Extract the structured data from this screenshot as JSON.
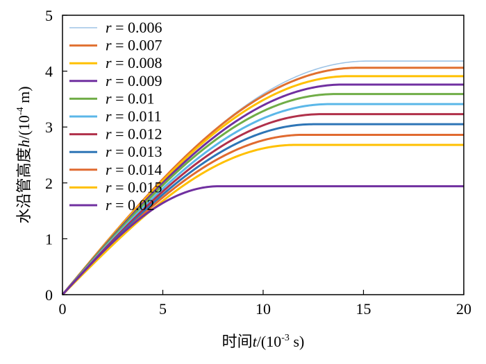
{
  "chart_data": {
    "type": "line",
    "title": "",
    "xlabel": {
      "prefix": "时间",
      "var": "t",
      "mid": "/(10",
      "exp": "-3",
      "suffix": " s)"
    },
    "ylabel": {
      "prefix": "水沿管高度",
      "var": "h",
      "mid": "/(10",
      "exp": "-4",
      "suffix": " m)"
    },
    "xlim": [
      0,
      20
    ],
    "ylim": [
      0,
      5
    ],
    "xticks": [
      "0",
      "5",
      "10",
      "15",
      "20"
    ],
    "yticks": [
      "0",
      "1",
      "2",
      "3",
      "4",
      "5"
    ],
    "grid": false,
    "legend_position": "top-left",
    "legend_var": "r",
    "series": [
      {
        "name": "= 0.006",
        "color": "#9dc3e6",
        "t_plateau": 15.2,
        "h_final": 4.18
      },
      {
        "name": "= 0.007",
        "color": "#e07030",
        "t_plateau": 14.7,
        "h_final": 4.06
      },
      {
        "name": "= 0.008",
        "color": "#ffc000",
        "t_plateau": 14.3,
        "h_final": 3.91
      },
      {
        "name": "= 0.009",
        "color": "#7030a0",
        "t_plateau": 14.0,
        "h_final": 3.76
      },
      {
        "name": "= 0.01",
        "color": "#70ad47",
        "t_plateau": 13.6,
        "h_final": 3.59
      },
      {
        "name": "= 0.011",
        "color": "#5bb7e8",
        "t_plateau": 13.3,
        "h_final": 3.41
      },
      {
        "name": "= 0.012",
        "color": "#b0304a",
        "t_plateau": 12.9,
        "h_final": 3.23
      },
      {
        "name": "= 0.013",
        "color": "#2e75b6",
        "t_plateau": 12.5,
        "h_final": 3.05
      },
      {
        "name": "= 0.014",
        "color": "#e06a30",
        "t_plateau": 12.0,
        "h_final": 2.86
      },
      {
        "name": "= 0.015",
        "color": "#ffc000",
        "t_plateau": 11.6,
        "h_final": 2.68
      },
      {
        "name": "= 0.02",
        "color": "#7030a0",
        "t_plateau": 7.8,
        "h_final": 1.94
      }
    ]
  }
}
